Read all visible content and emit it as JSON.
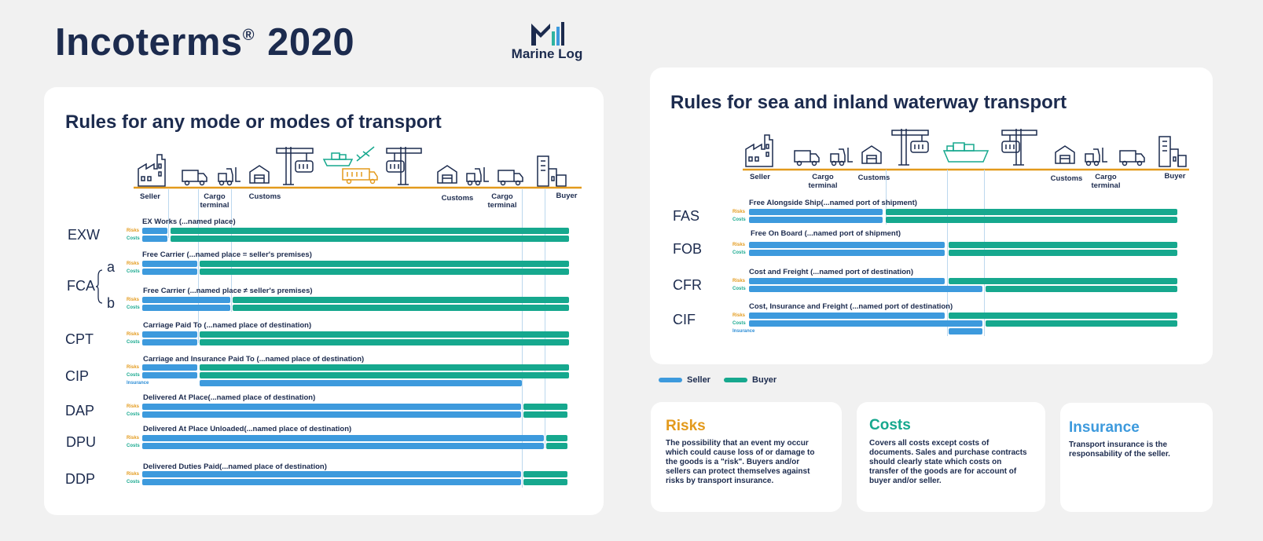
{
  "header": {
    "title": "Incoterms",
    "title_mark": "®",
    "title_year": "2020",
    "logo_text": "Marine Log"
  },
  "colors": {
    "seller": "#3d9add",
    "buyer": "#16a88e",
    "risk": "#e39a1c",
    "navy": "#1c2b4e"
  },
  "left_panel": {
    "title": "Rules for any mode or modes of transport",
    "labels": {
      "seller": "Seller",
      "cargo_terminal_1a": "Cargo",
      "cargo_terminal_1b": "terminal",
      "customs_1": "Customs",
      "customs_2": "Customs",
      "cargo_terminal_2a": "Cargo",
      "cargo_terminal_2b": "terminal",
      "buyer": "Buyer"
    },
    "codes": {
      "exw": "EXW",
      "fca": "FCA",
      "fca_a": "a",
      "fca_b": "b",
      "cpt": "CPT",
      "cip": "CIP",
      "dap": "DAP",
      "dpu": "DPU",
      "ddp": "DDP"
    },
    "rules": {
      "exw": "EX Works (...named place)",
      "fca_a": "Free Carrier (...named place = seller's premises)",
      "fca_b": "Free Carrier (...named place ≠ seller's premises)",
      "cpt": "Carriage Paid To (...named place of destination)",
      "cip": "Carriage and Insurance Paid To (...named place of destination)",
      "dap": "Delivered At Place(...named place of destination)",
      "dpu": "Delivered At Place Unloaded(...named place of destination)",
      "ddp": "Delivered Duties Paid(...named place of destination)"
    },
    "tags": {
      "risks": "Risks",
      "costs": "Costs",
      "insurance": "Insurance"
    }
  },
  "right_panel": {
    "title": "Rules for sea and inland waterway transport",
    "labels": {
      "seller": "Seller",
      "cargo_terminal_1a": "Cargo",
      "cargo_terminal_1b": "terminal",
      "customs_1": "Customs",
      "customs_2": "Customs",
      "cargo_terminal_2a": "Cargo",
      "cargo_terminal_2b": "terminal",
      "buyer": "Buyer"
    },
    "codes": {
      "fas": "FAS",
      "fob": "FOB",
      "cfr": "CFR",
      "cif": "CIF"
    },
    "rules": {
      "fas": "Free Alongside Ship(...named port of shipment)",
      "fob": "Free On Board (...named port of shipment)",
      "cfr": "Cost and Freight (...named port of destination)",
      "cif": "Cost, Insurance and Freight (...named port of destination)"
    },
    "tags": {
      "risks": "Risks",
      "costs": "Costs",
      "insurance": "Insurance"
    }
  },
  "legend": {
    "seller": "Seller",
    "buyer": "Buyer"
  },
  "cards": {
    "risks": {
      "title": "Risks",
      "body": "The possibility that an event my occur which could cause loss of or damage to the goods is a \"risk\". Buyers and/or sellers can protect themselves against risks by transport insurance."
    },
    "costs": {
      "title": "Costs",
      "body": "Covers all costs except costs of documents. Sales and purchase contracts should clearly state which costs on transfer of the goods are for account of buyer and/or seller."
    },
    "insurance": {
      "title": "Insurance",
      "body": "Transport insurance is the responsability of the seller."
    }
  }
}
